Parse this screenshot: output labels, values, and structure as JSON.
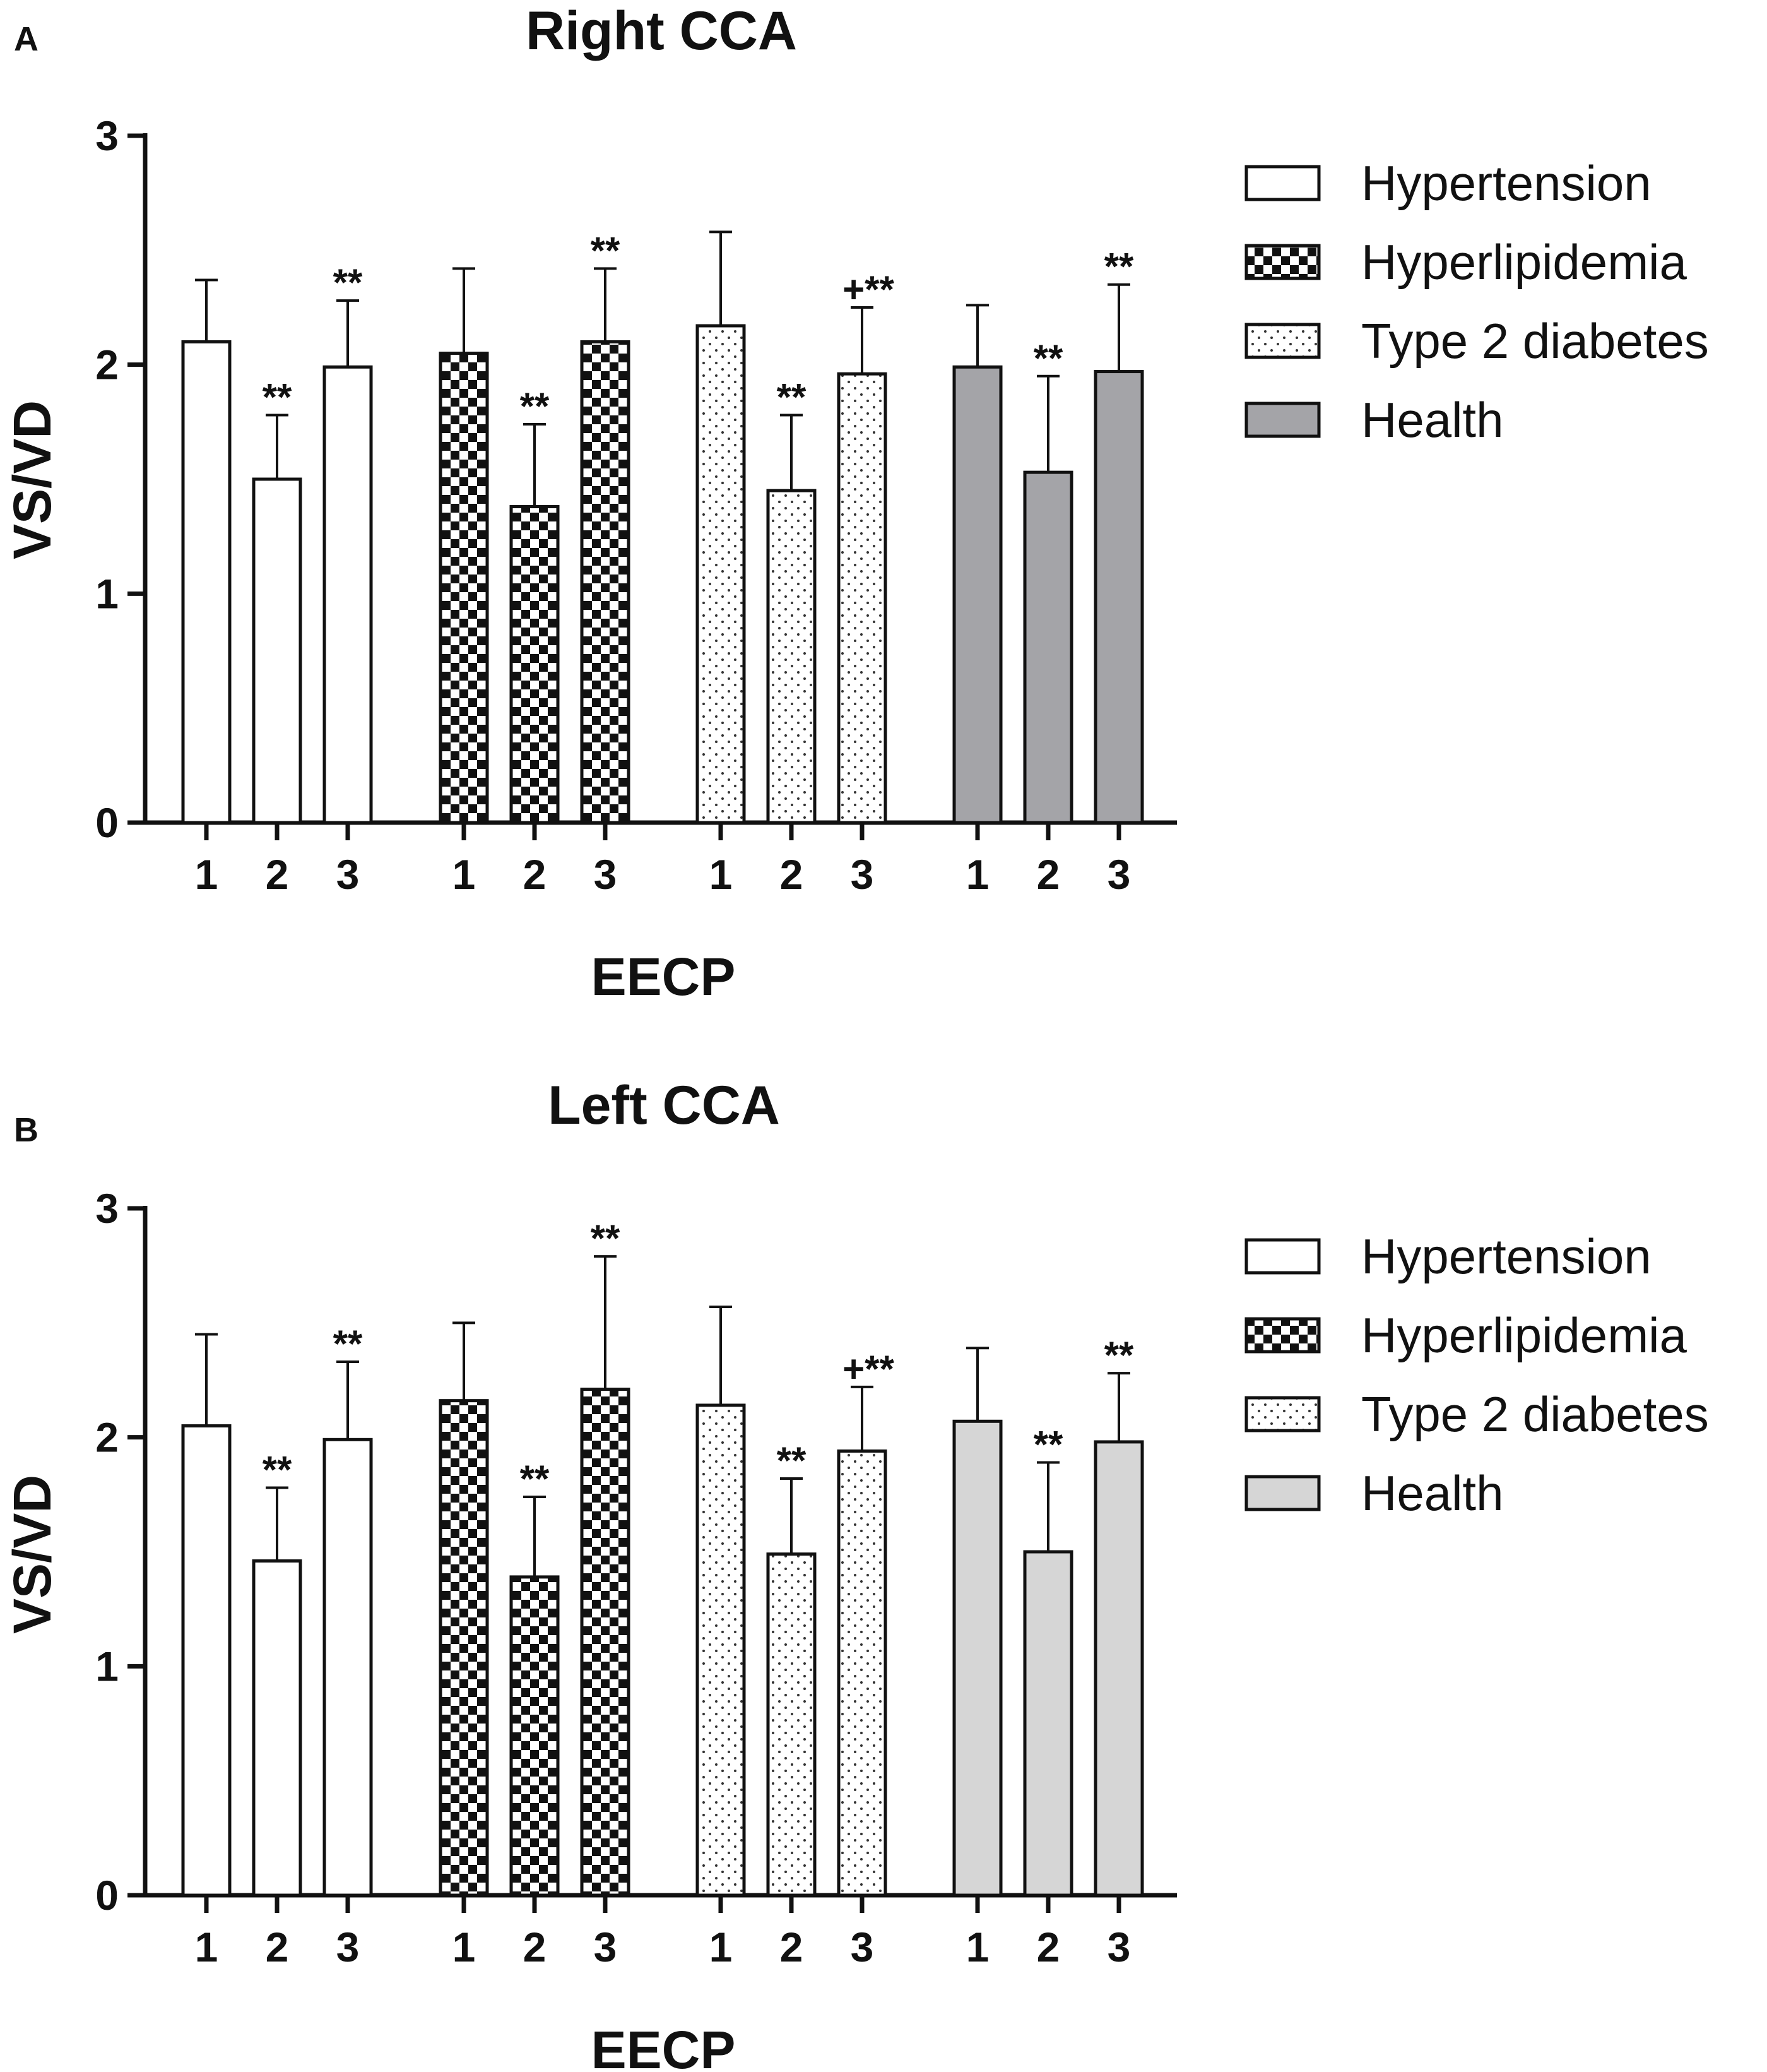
{
  "colors": {
    "health_a": "#a4a4a8",
    "health_b": "#d6d6d6",
    "checker_dark": "#111111",
    "dot": "#333333"
  },
  "chart_data": [
    {
      "type": "bar",
      "panel": "A",
      "title": "Right CCA",
      "xlabel": "EECP",
      "ylabel": "VS/VD",
      "ylim": [
        0,
        3
      ],
      "yticks": [
        "0",
        "1",
        "2",
        "3"
      ],
      "categories": [
        "1",
        "2",
        "3"
      ],
      "legend": [
        "Hypertension",
        "Hyperlipidemia",
        "Type 2 diabetes",
        "Health"
      ],
      "legend_position": "right",
      "series": [
        {
          "name": "Hypertension",
          "fill": "white",
          "values": [
            2.1,
            1.5,
            1.99
          ],
          "error_upper": [
            2.37,
            1.78,
            2.28
          ],
          "annotations": [
            "",
            "**",
            "**"
          ]
        },
        {
          "name": "Hyperlipidemia",
          "fill": "checker",
          "values": [
            2.05,
            1.38,
            2.1
          ],
          "error_upper": [
            2.42,
            1.74,
            2.42
          ],
          "annotations": [
            "",
            "**",
            "**"
          ]
        },
        {
          "name": "Type 2 diabetes",
          "fill": "dots",
          "values": [
            2.17,
            1.45,
            1.96
          ],
          "error_upper": [
            2.58,
            1.78,
            2.25
          ],
          "annotations": [
            "",
            "**",
            "+**"
          ]
        },
        {
          "name": "Health",
          "fill": "gray-dark",
          "values": [
            1.99,
            1.53,
            1.97
          ],
          "error_upper": [
            2.26,
            1.95,
            2.35
          ],
          "annotations": [
            "",
            "**",
            "**"
          ]
        }
      ]
    },
    {
      "type": "bar",
      "panel": "B",
      "title": "Left CCA",
      "xlabel": "EECP",
      "ylabel": "VS/VD",
      "ylim": [
        0,
        3
      ],
      "yticks": [
        "0",
        "1",
        "2",
        "3"
      ],
      "categories": [
        "1",
        "2",
        "3"
      ],
      "legend": [
        "Hypertension",
        "Hyperlipidemia",
        "Type 2 diabetes",
        "Health"
      ],
      "legend_position": "right",
      "series": [
        {
          "name": "Hypertension",
          "fill": "white",
          "values": [
            2.05,
            1.46,
            1.99
          ],
          "error_upper": [
            2.45,
            1.78,
            2.33
          ],
          "annotations": [
            "",
            "**",
            "**"
          ]
        },
        {
          "name": "Hyperlipidemia",
          "fill": "checker",
          "values": [
            2.16,
            1.39,
            2.21
          ],
          "error_upper": [
            2.5,
            1.74,
            2.79
          ],
          "annotations": [
            "",
            "**",
            "**"
          ]
        },
        {
          "name": "Type 2 diabetes",
          "fill": "dots",
          "values": [
            2.14,
            1.49,
            1.94
          ],
          "error_upper": [
            2.57,
            1.82,
            2.22
          ],
          "annotations": [
            "",
            "**",
            "+**"
          ]
        },
        {
          "name": "Health",
          "fill": "gray-light",
          "values": [
            2.07,
            1.5,
            1.98
          ],
          "error_upper": [
            2.39,
            1.89,
            2.28
          ],
          "annotations": [
            "",
            "**",
            "**"
          ]
        }
      ]
    }
  ]
}
